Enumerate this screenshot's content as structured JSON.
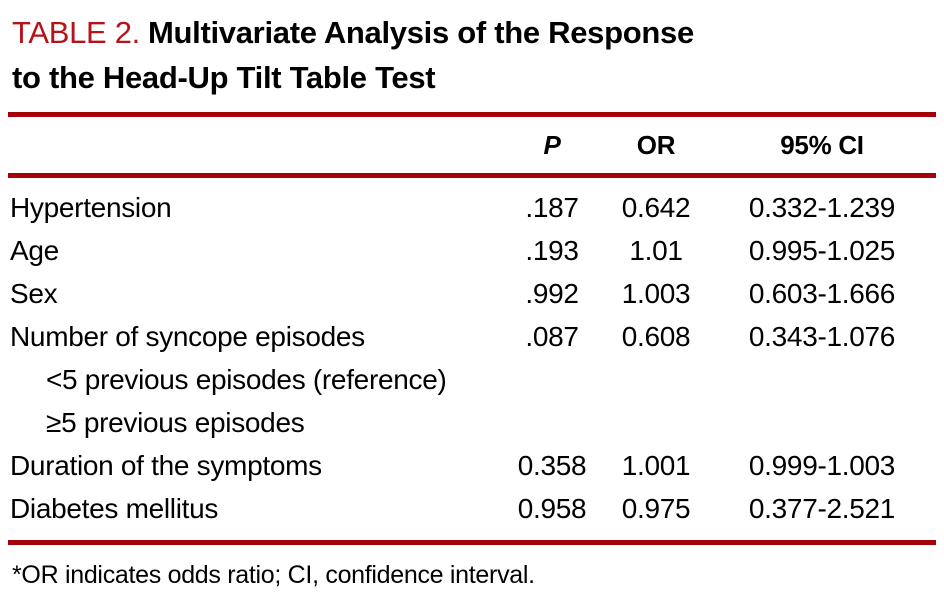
{
  "title": {
    "number": "TABLE 2.",
    "line1": "Multivariate Analysis of the Response",
    "line2": "to the Head-Up Tilt Table Test"
  },
  "columns": {
    "p": "P",
    "or": "OR",
    "ci": "95% CI"
  },
  "rows": [
    {
      "label": "Hypertension",
      "p": ".187",
      "or": "0.642",
      "ci": "0.332-1.239"
    },
    {
      "label": "Age",
      "p": ".193",
      "or": "1.01",
      "ci": "0.995-1.025"
    },
    {
      "label": "Sex",
      "p": ".992",
      "or": "1.003",
      "ci": "0.603-1.666"
    },
    {
      "label": "Number of syncope episodes",
      "p": ".087",
      "or": "0.608",
      "ci": "0.343-1.076"
    },
    {
      "label": "<5 previous episodes (reference)"
    },
    {
      "label": "≥5 previous episodes"
    },
    {
      "label": "Duration of the symptoms",
      "p": "0.358",
      "or": "1.001",
      "ci": "0.999-1.003"
    },
    {
      "label": "Diabetes mellitus",
      "p": "0.958",
      "or": "0.975",
      "ci": "0.377-2.521"
    }
  ],
  "footnote": "*OR indicates odds ratio; CI, confidence interval.",
  "colors": {
    "rule_red": "#A40008",
    "title_red": "#B5121B",
    "text": "#000000",
    "background": "#FFFFFF"
  }
}
